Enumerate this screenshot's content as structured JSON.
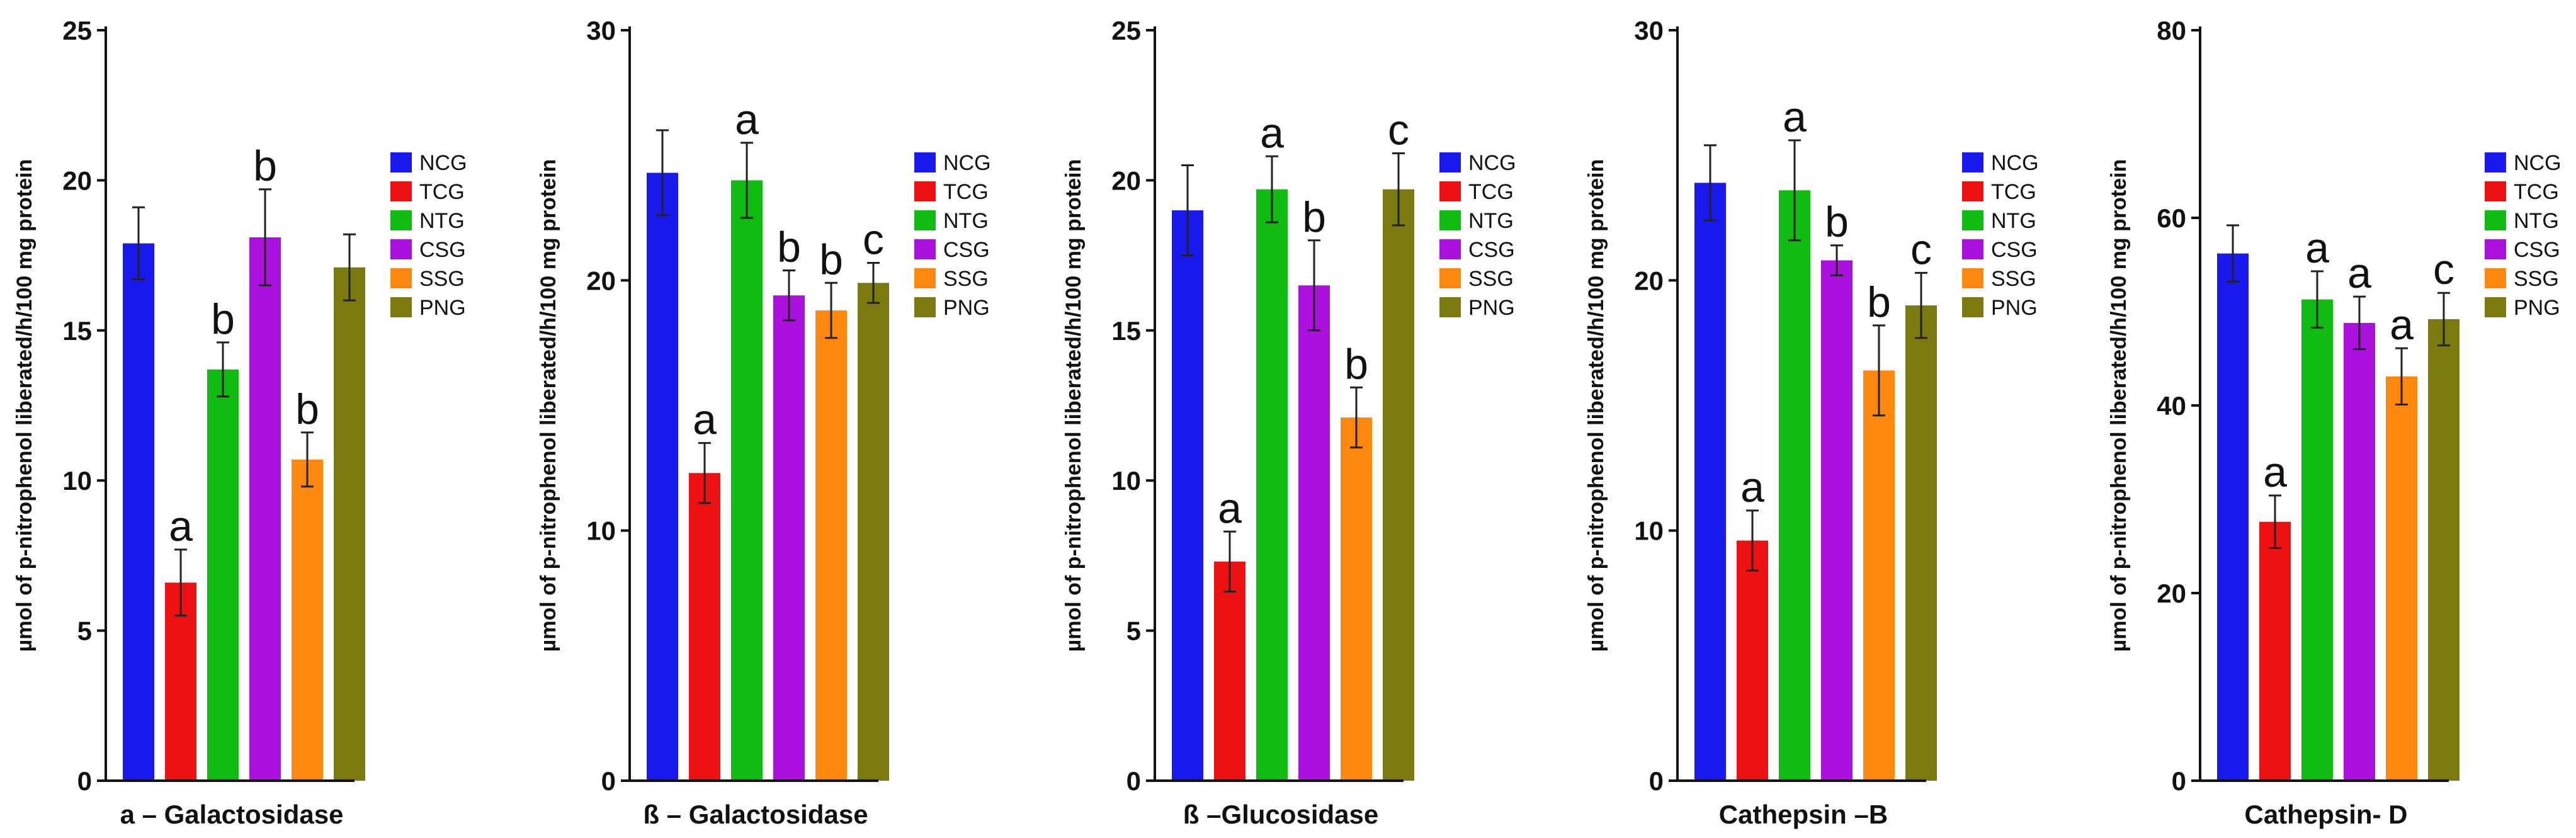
{
  "legend_colors": {
    "NCG": "#1a1aee",
    "TCG": "#ee1111",
    "NTG": "#11bb11",
    "CSG": "#aa11dd",
    "SSG": "#ff8811",
    "PNG": "#7a7a10"
  },
  "chart_data": [
    {
      "type": "bar",
      "title": "",
      "xlabel": "a – Galactosidase",
      "ylabel": "µmol of p-nitrophenol liberated/h/100 mg protein",
      "ylim": [
        0,
        25
      ],
      "yticks": [
        0,
        5,
        10,
        15,
        20,
        25
      ],
      "categories": [
        "NCG",
        "TCG",
        "NTG",
        "CSG",
        "SSG",
        "PNG"
      ],
      "values": [
        17.9,
        6.6,
        13.7,
        18.1,
        10.7,
        17.1
      ],
      "errors": [
        1.2,
        1.1,
        0.9,
        1.6,
        0.9,
        1.1
      ],
      "labels": [
        "",
        "a",
        "b",
        "b",
        "b",
        ""
      ],
      "legend": [
        "NCG",
        "TCG",
        "NTG",
        "CSG",
        "SSG",
        "PNG"
      ]
    },
    {
      "type": "bar",
      "title": "",
      "xlabel": "ß – Galactosidase",
      "ylabel": "µmol of p-nitrophenol liberated/h/100 mg protein",
      "ylim": [
        0,
        30
      ],
      "yticks": [
        0,
        10,
        20,
        30
      ],
      "categories": [
        "NCG",
        "TCG",
        "NTG",
        "CSG",
        "SSG",
        "PNG"
      ],
      "values": [
        24.3,
        12.3,
        24.0,
        19.4,
        18.8,
        19.9
      ],
      "errors": [
        1.7,
        1.2,
        1.5,
        1.0,
        1.1,
        0.8
      ],
      "labels": [
        "",
        "a",
        "a",
        "b",
        "b",
        "c"
      ],
      "legend": [
        "NCG",
        "TCG",
        "NTG",
        "CSG",
        "SSG",
        "PNG"
      ]
    },
    {
      "type": "bar",
      "title": "",
      "xlabel": "ß –Glucosidase",
      "ylabel": "µmol of p-nitrophenol liberated/h/100 mg protein",
      "ylim": [
        0,
        25
      ],
      "yticks": [
        0,
        5,
        10,
        15,
        20,
        25
      ],
      "categories": [
        "NCG",
        "TCG",
        "NTG",
        "CSG",
        "SSG",
        "PNG"
      ],
      "values": [
        19.0,
        7.3,
        19.7,
        16.5,
        12.1,
        19.7
      ],
      "errors": [
        1.5,
        1.0,
        1.1,
        1.5,
        1.0,
        1.2
      ],
      "labels": [
        "",
        "a",
        "a",
        "b",
        "b",
        "c"
      ],
      "legend": [
        "NCG",
        "TCG",
        "NTG",
        "CSG",
        "SSG",
        "PNG"
      ]
    },
    {
      "type": "bar",
      "title": "",
      "xlabel": "Cathepsin –B",
      "ylabel": "µmol of p-nitrophenol liberated/h/100 mg protein",
      "ylim": [
        0,
        30
      ],
      "yticks": [
        0,
        10,
        20,
        30
      ],
      "categories": [
        "NCG",
        "TCG",
        "NTG",
        "CSG",
        "SSG",
        "PNG"
      ],
      "values": [
        23.9,
        9.6,
        23.6,
        20.8,
        16.4,
        19.0
      ],
      "errors": [
        1.5,
        1.2,
        2.0,
        0.6,
        1.8,
        1.3
      ],
      "labels": [
        "",
        "a",
        "a",
        "b",
        "b",
        "c"
      ],
      "legend": [
        "NCG",
        "TCG",
        "NTG",
        "CSG",
        "SSG",
        "PNG"
      ]
    },
    {
      "type": "bar",
      "title": "",
      "xlabel": "Cathepsin- D",
      "ylabel": "µmol of p-nitrophenol liberated/h/100 mg protein",
      "ylim": [
        0,
        80
      ],
      "yticks": [
        0,
        20,
        40,
        60,
        80
      ],
      "categories": [
        "NCG",
        "TCG",
        "NTG",
        "CSG",
        "SSG",
        "PNG"
      ],
      "values": [
        56.2,
        27.6,
        51.3,
        48.8,
        43.1,
        49.2
      ],
      "errors": [
        3.0,
        2.8,
        3.0,
        2.8,
        3.0,
        2.8
      ],
      "labels": [
        "",
        "a",
        "a",
        "a",
        "a",
        "c"
      ],
      "legend": [
        "NCG",
        "TCG",
        "NTG",
        "CSG",
        "SSG",
        "PNG"
      ]
    }
  ]
}
